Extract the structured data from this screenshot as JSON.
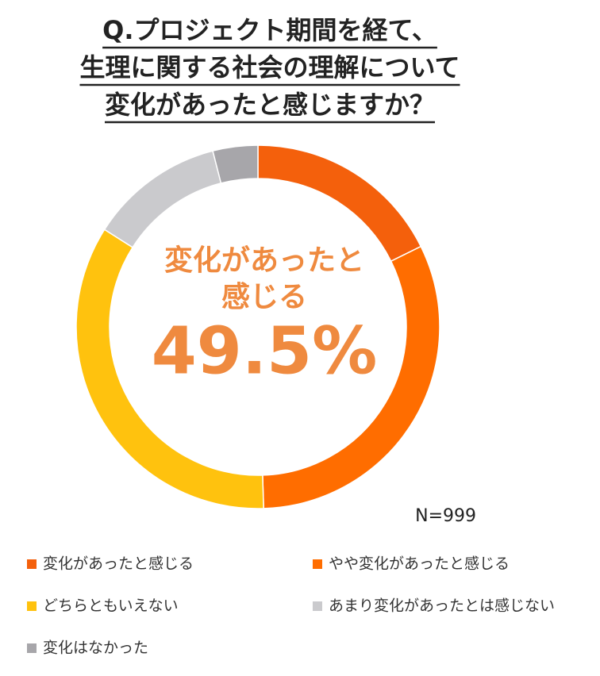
{
  "chart_data": {
    "type": "donut",
    "title": [
      "Q.プロジェクト期間を経て、",
      "生理に関する社会の理解について",
      "変化があったと感じますか？"
    ],
    "center_label": [
      "変化があったと",
      "感じる"
    ],
    "center_value": "49.5%",
    "note": "N=999",
    "categories": [
      "変化があったと感じる",
      "やや変化があったと感じる",
      "どちらともいえない",
      "あまり変化があったとは感じない",
      "変化はなかった"
    ],
    "values": [
      17.7,
      31.8,
      34.5,
      12,
      4
    ],
    "colors": [
      "#f4600c",
      "#ff6d00",
      "#ffc20e",
      "#cacacd",
      "#a7a6aa"
    ]
  }
}
